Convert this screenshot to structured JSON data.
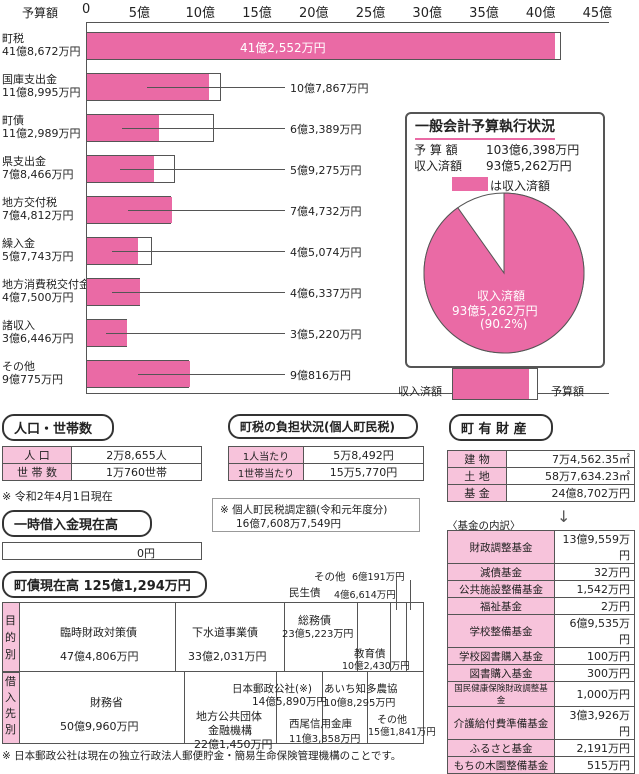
{
  "chart_data": {
    "type": "bar",
    "xlabel": "予算額",
    "ticks": [
      "0",
      "5億",
      "10億",
      "15億",
      "20億",
      "25億",
      "30億",
      "35億",
      "40億",
      "45億"
    ],
    "xlim": [
      0,
      45
    ],
    "colors": {
      "received": "#ea6aa5",
      "budget": "#ffffff"
    },
    "categories": [
      {
        "name": "町税",
        "budget_label": "41億8,672万円",
        "budget": 41.8672,
        "received": 41.2552,
        "received_label": "41億2,552万円"
      },
      {
        "name": "国庫支出金",
        "budget_label": "11億8,995万円",
        "budget": 11.8995,
        "received": 10.7867,
        "received_label": "10億7,867万円"
      },
      {
        "name": "町債",
        "budget_label": "11億2,989万円",
        "budget": 11.2989,
        "received": 6.3389,
        "received_label": "6億3,389万円"
      },
      {
        "name": "県支出金",
        "budget_label": "7億8,466万円",
        "budget": 7.8466,
        "received": 5.9275,
        "received_label": "5億9,275万円"
      },
      {
        "name": "地方交付税",
        "budget_label": "7億4,812万円",
        "budget": 7.4812,
        "received": 7.4732,
        "received_label": "7億4,732万円"
      },
      {
        "name": "繰入金",
        "budget_label": "5億7,743万円",
        "budget": 5.7743,
        "received": 4.5074,
        "received_label": "4億5,074万円"
      },
      {
        "name": "地方消費税交付金",
        "budget_label": "4億7,500万円",
        "budget": 4.75,
        "received": 4.6337,
        "received_label": "4億6,337万円"
      },
      {
        "name": "諸収入",
        "budget_label": "3億6,446万円",
        "budget": 3.6446,
        "received": 3.522,
        "received_label": "3億5,220万円"
      },
      {
        "name": "その他",
        "budget_label": "9億775万円",
        "budget": 9.0775,
        "received": 9.0816,
        "received_label": "9億816万円"
      }
    ]
  },
  "summary": {
    "title": "一般会計予算執行状況",
    "budget_label": "予 算 額",
    "budget_value": "103億6,398万円",
    "received_label": "収入済額",
    "received_value": "93億5,262万円",
    "legend": "は収入済額",
    "pie_label1": "収入済額",
    "pie_label2": "93億5,262万円",
    "pie_label3": "(90.2%)",
    "pie_ratio": 0.902
  },
  "key": {
    "received": "収入済額",
    "budget": "予算額"
  },
  "population": {
    "title": "人口・世帯数",
    "rows": [
      {
        "label": "人 口",
        "value": "2万8,655人"
      },
      {
        "label": "世 帯 数",
        "value": "1万760世帯"
      }
    ],
    "note": "※ 令和2年4月1日現在"
  },
  "tax": {
    "title": "町税の負担状況(個人町民税)",
    "rows": [
      {
        "label": "1人当たり",
        "value": "5万8,492円"
      },
      {
        "label": "1世帯当たり",
        "value": "15万5,770円"
      }
    ],
    "note1": "※ 個人町民税調定額(令和元年度分)",
    "note2": "16億7,608万7,549円"
  },
  "loan": {
    "title": "一時借入金現在高",
    "value": "0円"
  },
  "property": {
    "title": "町 有 財 産",
    "rows": [
      {
        "label": "建 物",
        "value": "7万4,562.35㎡"
      },
      {
        "label": "土 地",
        "value": "58万7,634.23㎡"
      },
      {
        "label": "基 金",
        "value": "24億8,702万円"
      }
    ],
    "funds_title": "〈基金の内訳〉",
    "funds": [
      {
        "label": "財政調整基金",
        "value": "13億9,559万円"
      },
      {
        "label": "減債基金",
        "value": "32万円"
      },
      {
        "label": "公共施設整備基金",
        "value": "1,542万円"
      },
      {
        "label": "福祉基金",
        "value": "2万円"
      },
      {
        "label": "学校整備基金",
        "value": "6億9,535万円"
      },
      {
        "label": "学校図書購入基金",
        "value": "100万円"
      },
      {
        "label": "図書購入基金",
        "value": "300万円"
      },
      {
        "label": "国民健康保険財政調整基金",
        "value": "1,000万円"
      },
      {
        "label": "介護給付費準備基金",
        "value": "3億3,926万円"
      },
      {
        "label": "ふるさと基金",
        "value": "2,191万円"
      },
      {
        "label": "もちの木園整備基金",
        "value": "515万円"
      }
    ]
  },
  "debt": {
    "title": "町債現在高 125億1,294万円",
    "purpose_label": "目的別",
    "lender_label": "借入先別",
    "purpose": [
      {
        "name": "臨時財政対策債",
        "value": "47億4,806万円"
      },
      {
        "name": "下水道事業債",
        "value": "33億2,031万円"
      },
      {
        "name": "総務債",
        "value": "23億5,223万円"
      },
      {
        "name": "教育債",
        "value": "10億2,430万円"
      },
      {
        "name": "民生債",
        "value": "4億6,614万円"
      },
      {
        "name": "その他",
        "value": "6億191万円"
      }
    ],
    "lender": [
      {
        "name": "財務省",
        "value": "50億9,960万円"
      },
      {
        "name": "地方公共団体",
        "name2": "金融機構",
        "value": "22億1,450万円"
      },
      {
        "name": "日本郵政公社(※)",
        "value": "14億5,890万円"
      },
      {
        "name": "あいち知多農協",
        "value": "10億8,295万円"
      },
      {
        "name": "西尾信用金庫",
        "value": "11億3,858万円"
      },
      {
        "name": "その他",
        "value": "15億1,841万円"
      }
    ],
    "footnote": "※ 日本郵政公社は現在の独立行政法人郵便貯金・簡易生命保険管理機構のことです。"
  }
}
